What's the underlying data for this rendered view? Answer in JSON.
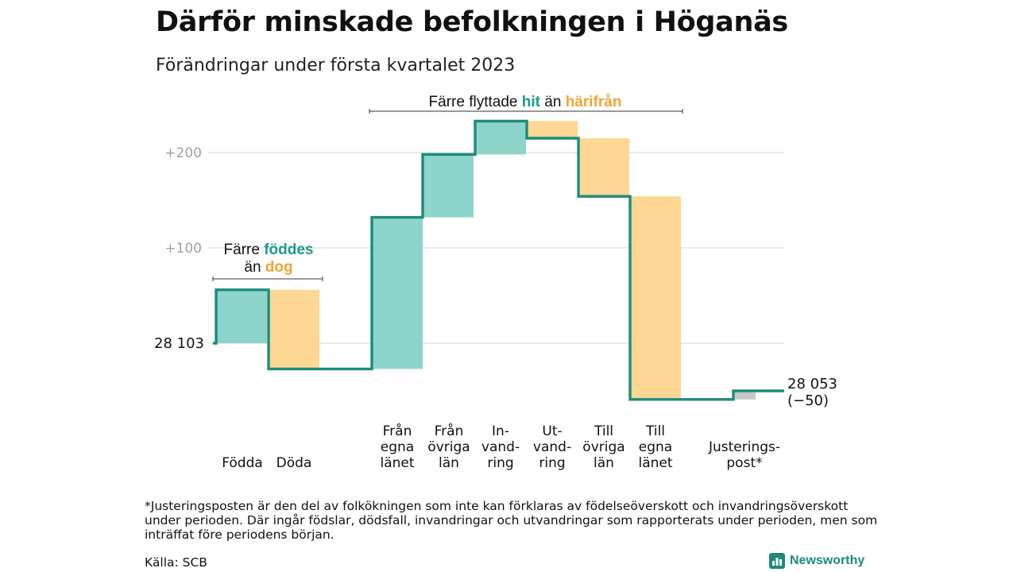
{
  "title": "Därför minskade befolkningen i Höganäs",
  "subtitle": "Förändringar under första kvartalet 2023",
  "chart_data": {
    "type": "waterfall",
    "start_value": 28103,
    "end_value": 28053,
    "start_label": "28 103",
    "end_label_lines": [
      "28 053",
      "(−50)"
    ],
    "ylim": [
      28103,
      28353
    ],
    "yticks": [
      {
        "value": 28303,
        "label": "+200"
      },
      {
        "value": 28203,
        "label": "+100"
      },
      {
        "value": 28103,
        "label": ""
      }
    ],
    "steps": [
      {
        "label_lines": [
          "Födda"
        ],
        "change": 56,
        "kind": "gain"
      },
      {
        "label_lines": [
          "Döda"
        ],
        "change": -83,
        "kind": "loss"
      },
      {
        "label_lines": [
          "Från",
          "egna",
          "länet"
        ],
        "change": 159,
        "kind": "gain"
      },
      {
        "label_lines": [
          "Från",
          "övriga",
          "län"
        ],
        "change": 66,
        "kind": "gain"
      },
      {
        "label_lines": [
          "In-",
          "vand-",
          "ring"
        ],
        "change": 35,
        "kind": "gain"
      },
      {
        "label_lines": [
          "Ut-",
          "vand-",
          "ring"
        ],
        "change": -18,
        "kind": "loss"
      },
      {
        "label_lines": [
          "Till",
          "övriga",
          "län"
        ],
        "change": -61,
        "kind": "loss"
      },
      {
        "label_lines": [
          "Till",
          "egna",
          "länet"
        ],
        "change": -213,
        "kind": "loss"
      },
      {
        "label_lines": [
          "Justerings-",
          "post*"
        ],
        "change": 9,
        "kind": "adjust"
      }
    ],
    "annotations": {
      "births_deaths": {
        "lines": [
          [
            "Färre ",
            "föddes"
          ],
          [
            "än ",
            "dog"
          ]
        ]
      },
      "migration": {
        "parts": [
          "Färre flyttade ",
          "hit",
          " än ",
          "härifrån"
        ]
      }
    }
  },
  "colors": {
    "gain_fill": "#8dd5cb",
    "loss_fill": "#fdd793",
    "adjust_fill": "#c8c8c8",
    "line": "#1d8a7d",
    "gain_text": "#1d9a8a",
    "loss_text": "#f2a532",
    "grid": "#dddddd",
    "tick_text": "#a0a0a0"
  },
  "footnote": "*Justeringsposten är den del av folkökningen som inte kan förklaras av födelseöverskott och invandringsöverskott under perioden. Där ingår födslar, dödsfall, invandringar och utvandringar som rapporterats under perioden, men som inträffat före periodens början.",
  "source": "Källa: SCB",
  "brand": "Newsworthy"
}
